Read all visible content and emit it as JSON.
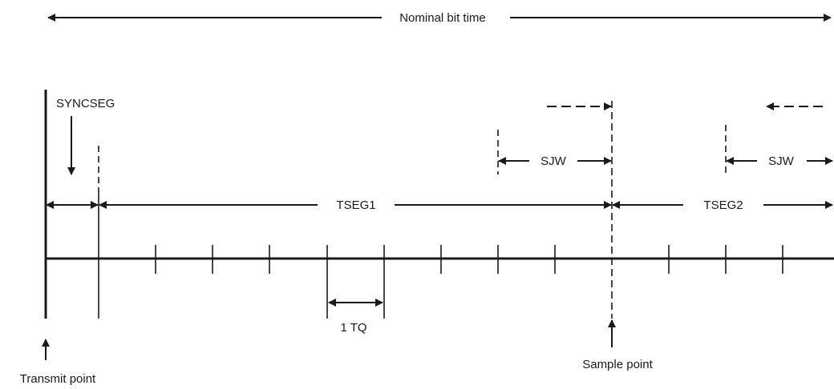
{
  "diagram": {
    "nominal_bit_time_label": "Nominal bit time",
    "syncseg_label": "SYNCSEG",
    "tseg1_label": "TSEG1",
    "tseg2_label": "TSEG2",
    "sjw_left_label": "SJW",
    "sjw_right_label": "SJW",
    "tq_label": "1 TQ",
    "sample_point_label": "Sample point",
    "transmit_point_label": "Transmit point"
  }
}
